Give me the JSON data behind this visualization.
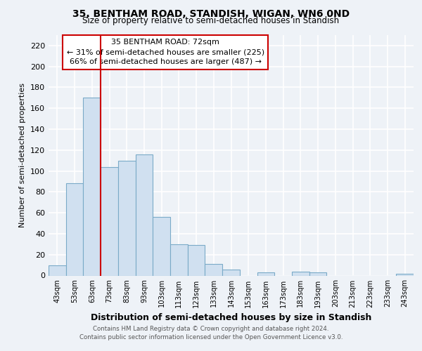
{
  "title": "35, BENTHAM ROAD, STANDISH, WIGAN, WN6 0ND",
  "subtitle": "Size of property relative to semi-detached houses in Standish",
  "xlabel": "Distribution of semi-detached houses by size in Standish",
  "ylabel": "Number of semi-detached properties",
  "bar_color": "#d0e0f0",
  "bar_edge_color": "#7aaac8",
  "marker_line_color": "#cc0000",
  "bin_labels": [
    "43sqm",
    "53sqm",
    "63sqm",
    "73sqm",
    "83sqm",
    "93sqm",
    "103sqm",
    "113sqm",
    "123sqm",
    "133sqm",
    "143sqm",
    "153sqm",
    "163sqm",
    "173sqm",
    "183sqm",
    "193sqm",
    "203sqm",
    "213sqm",
    "223sqm",
    "233sqm",
    "243sqm"
  ],
  "counts": [
    10,
    88,
    170,
    104,
    110,
    116,
    56,
    30,
    29,
    11,
    6,
    0,
    3,
    0,
    4,
    3,
    0,
    0,
    0,
    0,
    2
  ],
  "ylim": [
    0,
    230
  ],
  "yticks": [
    0,
    20,
    40,
    60,
    80,
    100,
    120,
    140,
    160,
    180,
    200,
    220
  ],
  "annotation_title": "35 BENTHAM ROAD: 72sqm",
  "annotation_line1": "← 31% of semi-detached houses are smaller (225)",
  "annotation_line2": "66% of semi-detached houses are larger (487) →",
  "footnote1": "Contains HM Land Registry data © Crown copyright and database right 2024.",
  "footnote2": "Contains public sector information licensed under the Open Government Licence v3.0.",
  "background_color": "#eef2f7",
  "plot_background": "#eef2f7",
  "grid_color": "#ffffff"
}
